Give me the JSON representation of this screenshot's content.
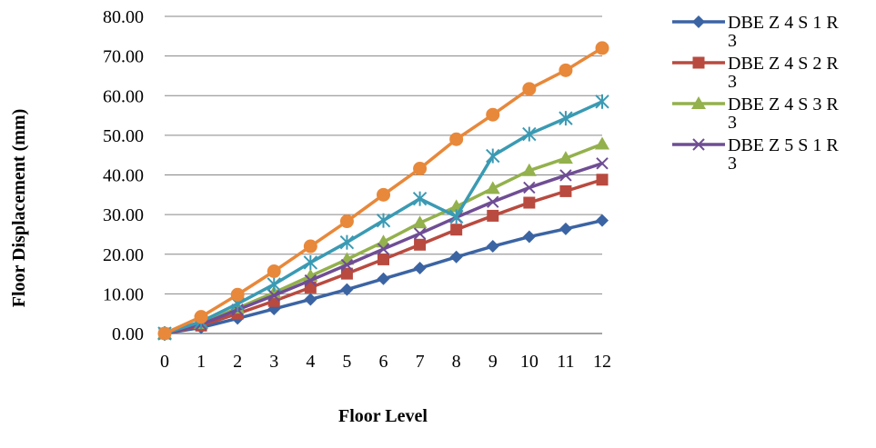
{
  "chart_data": {
    "type": "line",
    "title": "",
    "xlabel": "Floor Level",
    "ylabel": "Floor Displacement (mm)",
    "x": [
      0,
      1,
      2,
      3,
      4,
      5,
      6,
      7,
      8,
      9,
      10,
      11,
      12
    ],
    "xlim": [
      0,
      12
    ],
    "ylim": [
      0,
      80
    ],
    "yticks": [
      "0.00",
      "10.00",
      "20.00",
      "30.00",
      "40.00",
      "50.00",
      "60.00",
      "70.00",
      "80.00"
    ],
    "xticks": [
      "0",
      "1",
      "2",
      "3",
      "4",
      "5",
      "6",
      "7",
      "8",
      "9",
      "10",
      "11",
      "12"
    ],
    "grid": "horizontal",
    "legend_position": "right",
    "series": [
      {
        "name": "DBE Z 4 S 1 R 3",
        "color": "#3B64A3",
        "marker": "diamond",
        "values": [
          0,
          1.5,
          3.8,
          6.2,
          8.6,
          11.1,
          13.8,
          16.5,
          19.3,
          22.0,
          24.4,
          26.4,
          28.5
        ]
      },
      {
        "name": "DBE Z 4 S 2 R 3",
        "color": "#B94A3F",
        "marker": "square",
        "values": [
          0,
          2.0,
          5.0,
          8.2,
          11.6,
          15.1,
          18.7,
          22.4,
          26.2,
          29.7,
          33.0,
          35.9,
          38.8
        ]
      },
      {
        "name": "DBE Z 4 S 3 R 3",
        "color": "#93B14C",
        "marker": "triangle",
        "values": [
          0,
          2.5,
          6.4,
          10.3,
          14.5,
          18.7,
          23.1,
          27.9,
          32.0,
          36.6,
          41.1,
          44.2,
          47.8
        ]
      },
      {
        "name": "DBE Z 5 S 1 R 3",
        "color": "#6F4D94",
        "marker": "x",
        "values": [
          0,
          2.3,
          6.0,
          9.6,
          13.4,
          17.3,
          21.3,
          25.2,
          29.3,
          33.2,
          36.8,
          39.9,
          42.9
        ]
      },
      {
        "name": "",
        "color": "#3A9AB3",
        "marker": "star",
        "values": [
          0,
          3.0,
          7.5,
          12.4,
          17.9,
          23.0,
          28.5,
          34.0,
          29.5,
          44.8,
          50.3,
          54.3,
          58.5
        ]
      },
      {
        "name": "",
        "color": "#E8883A",
        "marker": "circle",
        "values": [
          0,
          4.2,
          9.8,
          15.7,
          22.0,
          28.3,
          35.0,
          41.6,
          49.0,
          55.2,
          61.7,
          66.4,
          72.0
        ]
      }
    ]
  }
}
